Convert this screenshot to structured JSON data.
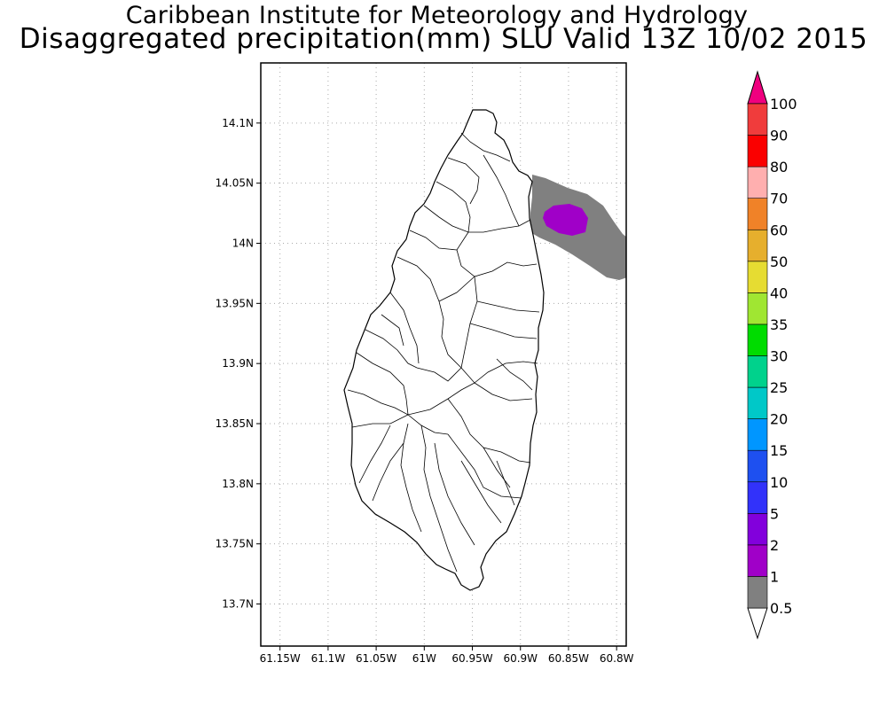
{
  "header": {
    "title": "Caribbean Institute for Meteorology and Hydrology",
    "subtitle": "Disaggregated precipitation(mm) SLU Valid 13Z 10/02 2015"
  },
  "map": {
    "lon_range": [
      -61.17,
      -60.79
    ],
    "lat_range": [
      13.665,
      14.15
    ],
    "x_ticks": [
      {
        "lon": -61.15,
        "label": "61.15W"
      },
      {
        "lon": -61.1,
        "label": "61.1W"
      },
      {
        "lon": -61.05,
        "label": "61.05W"
      },
      {
        "lon": -61.0,
        "label": "61W"
      },
      {
        "lon": -60.95,
        "label": "60.95W"
      },
      {
        "lon": -60.9,
        "label": "60.9W"
      },
      {
        "lon": -60.85,
        "label": "60.85W"
      },
      {
        "lon": -60.8,
        "label": "60.8W"
      }
    ],
    "y_ticks": [
      {
        "lat": 14.1,
        "label": "14.1N"
      },
      {
        "lat": 14.05,
        "label": "14.05N"
      },
      {
        "lat": 14.0,
        "label": "14N"
      },
      {
        "lat": 13.95,
        "label": "13.95N"
      },
      {
        "lat": 13.9,
        "label": "13.9N"
      },
      {
        "lat": 13.85,
        "label": "13.85N"
      },
      {
        "lat": 13.8,
        "label": "13.8N"
      },
      {
        "lat": 13.75,
        "label": "13.75N"
      },
      {
        "lat": 13.7,
        "label": "13.7N"
      }
    ],
    "grid": "dotted",
    "precip_areas": [
      {
        "level": "0.5-1 mm",
        "color": "#808080",
        "lon_range": [
          -60.89,
          -60.79
        ],
        "lat_range": [
          13.97,
          14.055
        ]
      },
      {
        "level": "1-2 mm",
        "color": "#a000c8",
        "lon_range": [
          -60.868,
          -60.832
        ],
        "lat_range": [
          14.008,
          14.029
        ]
      }
    ]
  },
  "colorbar": {
    "levels": [
      "0.5",
      "1",
      "2",
      "5",
      "10",
      "15",
      "20",
      "25",
      "30",
      "35",
      "40",
      "50",
      "60",
      "70",
      "80",
      "90",
      "100"
    ],
    "colors": [
      "#808080",
      "#a000c8",
      "#8200dc",
      "#3232fa",
      "#1e50f0",
      "#0096ff",
      "#00c8c8",
      "#00d28c",
      "#00dc00",
      "#a0e632",
      "#e6dc32",
      "#e6af2d",
      "#f08228",
      "#ffafaf",
      "#fa0000",
      "#f03c3c"
    ],
    "under_color": "#ffffff",
    "over_color": "#f0007f"
  }
}
